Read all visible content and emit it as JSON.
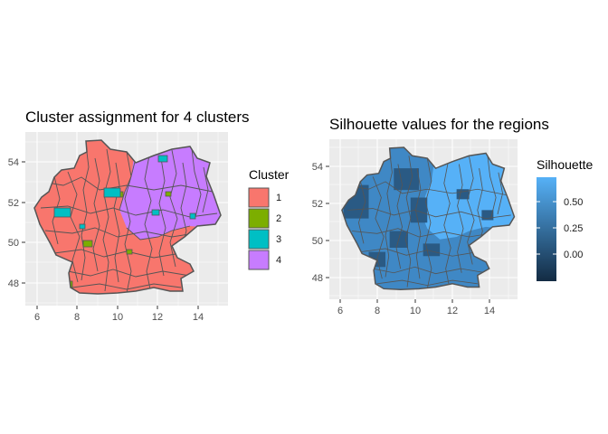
{
  "left_panel": {
    "title": "Cluster assignment for 4 clusters",
    "x_ticks": [
      "6",
      "8",
      "10",
      "12",
      "14"
    ],
    "y_ticks": [
      "54",
      "52",
      "50",
      "48"
    ],
    "legend": {
      "title": "Cluster",
      "items": [
        {
          "label": "1",
          "color": "#F8766D"
        },
        {
          "label": "2",
          "color": "#7CAE00"
        },
        {
          "label": "3",
          "color": "#00BFC4"
        },
        {
          "label": "4",
          "color": "#C77CFF"
        }
      ]
    }
  },
  "right_panel": {
    "title": "Silhouette values for the regions",
    "x_ticks": [
      "6",
      "8",
      "10",
      "12",
      "14"
    ],
    "y_ticks": [
      "54",
      "52",
      "50",
      "48"
    ],
    "legend": {
      "title": "Silhouette",
      "labels": [
        "0.50",
        "0.25",
        "0.00"
      ],
      "gradient_low": "#132B43",
      "gradient_high": "#56B1F7"
    }
  },
  "colors": {
    "panel_bg": "#EBEBEB",
    "gridline": "#FFFFFF",
    "region_border": "#555555",
    "cluster1": "#F8766D",
    "cluster2": "#7CAE00",
    "cluster3": "#00BFC4",
    "cluster4": "#C77CFF",
    "silhouette_main": "#3F88C5",
    "silhouette_high": "#56B1F7",
    "silhouette_low": "#2A5A84"
  }
}
